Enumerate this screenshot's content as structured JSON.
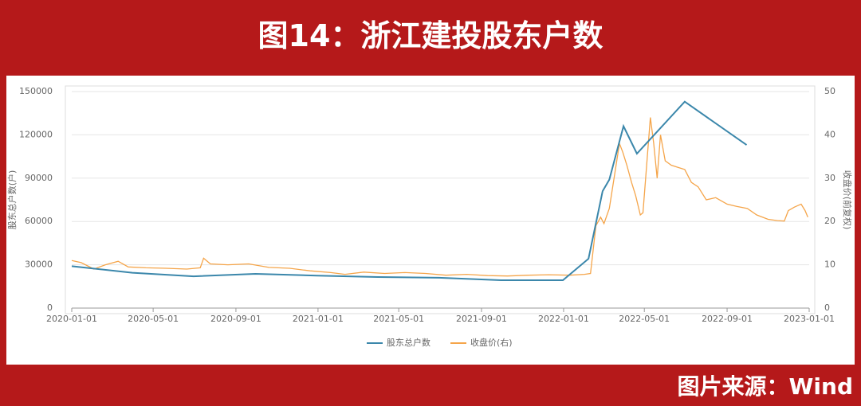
{
  "chart_data": {
    "type": "line",
    "title": "图14：浙江建投股东户数",
    "source": "图片来源：Wind",
    "ylabel": "股东总户数(户)",
    "y2label": "收盘价(前复权)",
    "xlim": [
      "2020-01-01",
      "2023-01-01"
    ],
    "xticks": [
      "2020-01-01",
      "2020-05-01",
      "2020-09-01",
      "2021-01-01",
      "2021-05-01",
      "2021-09-01",
      "2022-01-01",
      "2022-05-01",
      "2022-09-01",
      "2023-01-01"
    ],
    "ylim": [
      0,
      150000
    ],
    "yticks": [
      0,
      30000,
      60000,
      90000,
      120000,
      150000
    ],
    "y2lim": [
      0,
      50
    ],
    "y2ticks": [
      0,
      10,
      20,
      30,
      40,
      50
    ],
    "grid": true,
    "legend": "bottom",
    "series": [
      {
        "name": "股东总户数",
        "color": "#3b87ab",
        "x": [
          "2020-01-01",
          "2020-03-31",
          "2020-06-30",
          "2020-09-30",
          "2020-12-31",
          "2021-03-31",
          "2021-06-30",
          "2021-09-30",
          "2021-12-31",
          "2022-02-07",
          "2022-02-28",
          "2022-03-10",
          "2022-03-31",
          "2022-04-20",
          "2022-06-30",
          "2022-09-30"
        ],
        "values": [
          29000,
          24500,
          22000,
          23700,
          22500,
          21500,
          21000,
          19300,
          19300,
          34200,
          81000,
          89000,
          126000,
          107000,
          143000,
          113000
        ]
      },
      {
        "name": "收盘价(右)",
        "color": "#f5a54a",
        "axis": "y2",
        "x": [
          "2020-01-01",
          "2020-01-15",
          "2020-02-03",
          "2020-02-20",
          "2020-03-10",
          "2020-03-25",
          "2020-04-20",
          "2020-05-20",
          "2020-06-20",
          "2020-07-10",
          "2020-07-15",
          "2020-07-25",
          "2020-08-20",
          "2020-09-20",
          "2020-10-20",
          "2020-11-20",
          "2020-12-20",
          "2021-01-20",
          "2021-02-10",
          "2021-03-10",
          "2021-04-10",
          "2021-05-10",
          "2021-06-10",
          "2021-07-10",
          "2021-08-10",
          "2021-09-10",
          "2021-10-10",
          "2021-11-10",
          "2021-12-10",
          "2022-01-10",
          "2022-02-01",
          "2022-02-10",
          "2022-02-18",
          "2022-02-25",
          "2022-03-02",
          "2022-03-10",
          "2022-03-18",
          "2022-03-25",
          "2022-03-30",
          "2022-04-05",
          "2022-04-12",
          "2022-04-18",
          "2022-04-25",
          "2022-04-29",
          "2022-05-06",
          "2022-05-10",
          "2022-05-15",
          "2022-05-20",
          "2022-05-25",
          "2022-06-01",
          "2022-06-10",
          "2022-06-20",
          "2022-06-30",
          "2022-07-10",
          "2022-07-20",
          "2022-08-01",
          "2022-08-15",
          "2022-09-01",
          "2022-09-15",
          "2022-10-01",
          "2022-10-15",
          "2022-11-01",
          "2022-11-15",
          "2022-11-25",
          "2022-12-01",
          "2022-12-10",
          "2022-12-20",
          "2022-12-26",
          "2022-12-30"
        ],
        "values": [
          11,
          10.5,
          9,
          10,
          10.8,
          9.5,
          9.3,
          9.2,
          9.0,
          9.3,
          11.5,
          10.2,
          10,
          10.2,
          9.4,
          9.2,
          8.6,
          8.2,
          7.8,
          8.3,
          8.0,
          8.2,
          8.0,
          7.6,
          7.8,
          7.5,
          7.4,
          7.6,
          7.7,
          7.6,
          7.8,
          8,
          19,
          21,
          19.5,
          23,
          31,
          38,
          36,
          33,
          29,
          26,
          21.5,
          22,
          36,
          44,
          38,
          30,
          40,
          34,
          33,
          32.5,
          32,
          29,
          28,
          25,
          25.5,
          24,
          23.5,
          23,
          21.5,
          20.5,
          20.2,
          20.1,
          22.5,
          23.3,
          24,
          22.5,
          21
        ]
      }
    ]
  }
}
